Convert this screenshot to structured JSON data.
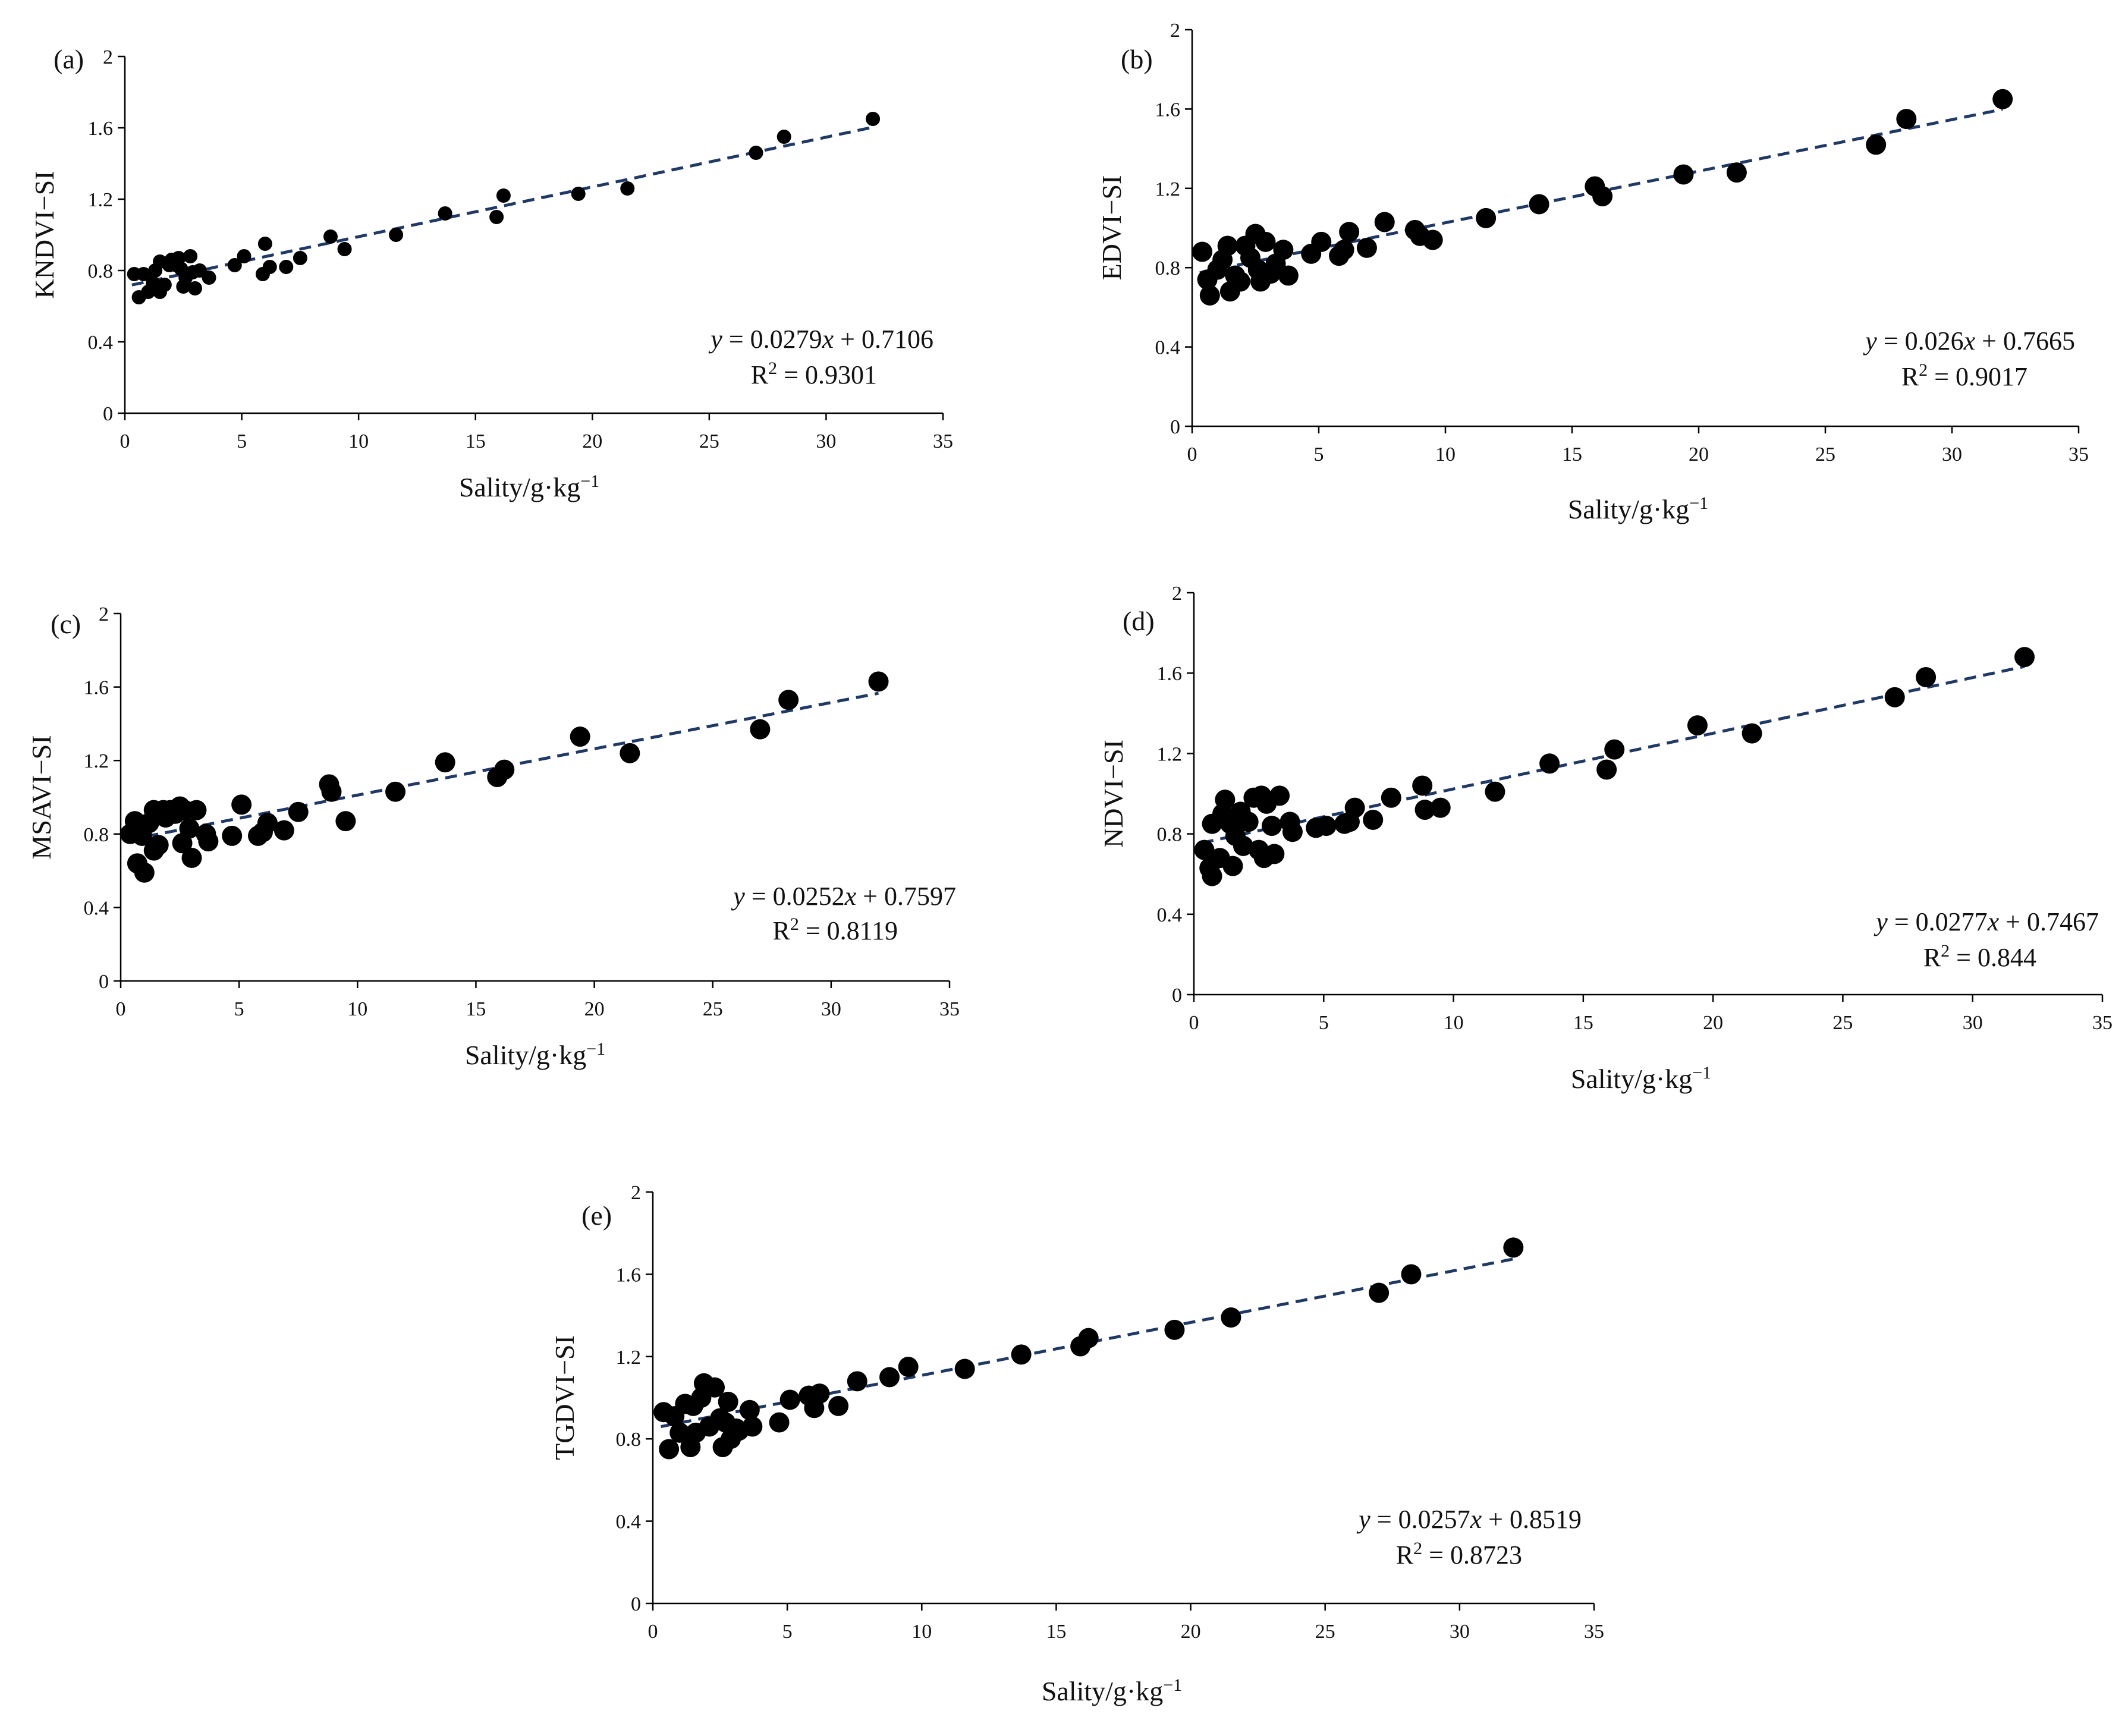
{
  "figure": {
    "xaxis_label_base": "Sality/g·kg",
    "xaxis_label_sup": "−1"
  },
  "chart_data": [
    {
      "type": "scatter",
      "panel": "(a)",
      "ylabel": "KNDVI−SI",
      "xlim": [
        0,
        35
      ],
      "ylim": [
        0,
        2
      ],
      "xticks": [
        "0",
        "5",
        "10",
        "15",
        "20",
        "25",
        "30",
        "35"
      ],
      "yticks": [
        "0",
        "0.4",
        "0.8",
        "1.2",
        "1.6",
        "2"
      ],
      "equation": {
        "y": "y",
        "eq": " = 0.0279",
        "x": "x",
        "tail": " + 0.7106"
      },
      "r2": {
        "base": "R",
        "sup": "2",
        "val": " = 0.9301"
      },
      "fit": {
        "slope": 0.0279,
        "intercept": 0.7106
      },
      "marker": "small",
      "points": [
        [
          0.4,
          0.78
        ],
        [
          0.6,
          0.65
        ],
        [
          0.8,
          0.78
        ],
        [
          1.0,
          0.68
        ],
        [
          1.2,
          0.73
        ],
        [
          1.3,
          0.8
        ],
        [
          1.5,
          0.85
        ],
        [
          1.5,
          0.68
        ],
        [
          1.7,
          0.72
        ],
        [
          1.9,
          0.83
        ],
        [
          2.0,
          0.86
        ],
        [
          2.2,
          0.83
        ],
        [
          2.3,
          0.87
        ],
        [
          2.4,
          0.81
        ],
        [
          2.5,
          0.71
        ],
        [
          2.6,
          0.76
        ],
        [
          2.8,
          0.88
        ],
        [
          2.9,
          0.79
        ],
        [
          3.0,
          0.7
        ],
        [
          3.2,
          0.8
        ],
        [
          3.6,
          0.76
        ],
        [
          4.7,
          0.83
        ],
        [
          5.1,
          0.88
        ],
        [
          5.9,
          0.78
        ],
        [
          6.0,
          0.95
        ],
        [
          6.2,
          0.82
        ],
        [
          6.9,
          0.82
        ],
        [
          7.5,
          0.87
        ],
        [
          8.8,
          0.99
        ],
        [
          9.4,
          0.92
        ],
        [
          11.6,
          1.0
        ],
        [
          13.7,
          1.12
        ],
        [
          15.9,
          1.1
        ],
        [
          16.2,
          1.22
        ],
        [
          19.4,
          1.23
        ],
        [
          21.5,
          1.26
        ],
        [
          27.0,
          1.46
        ],
        [
          28.2,
          1.55
        ],
        [
          32.0,
          1.65
        ]
      ]
    },
    {
      "type": "scatter",
      "panel": "(b)",
      "ylabel": "EDVI−SI",
      "xlim": [
        0,
        35
      ],
      "ylim": [
        0,
        2
      ],
      "xticks": [
        "0",
        "5",
        "10",
        "15",
        "20",
        "25",
        "30",
        "35"
      ],
      "yticks": [
        "0",
        "0.4",
        "0.8",
        "1.2",
        "1.6",
        "2"
      ],
      "equation": {
        "y": "y",
        "eq": " = 0.026",
        "x": "x",
        "tail": " + 0.7665"
      },
      "r2": {
        "base": "R",
        "sup": "2",
        "val": " = 0.9017"
      },
      "fit": {
        "slope": 0.026,
        "intercept": 0.7665
      },
      "marker": "large",
      "points": [
        [
          0.4,
          0.88
        ],
        [
          0.6,
          0.74
        ],
        [
          0.7,
          0.66
        ],
        [
          1.0,
          0.79
        ],
        [
          1.2,
          0.84
        ],
        [
          1.4,
          0.91
        ],
        [
          1.5,
          0.68
        ],
        [
          1.7,
          0.76
        ],
        [
          1.9,
          0.73
        ],
        [
          2.1,
          0.91
        ],
        [
          2.3,
          0.85
        ],
        [
          2.5,
          0.97
        ],
        [
          2.6,
          0.79
        ],
        [
          2.7,
          0.73
        ],
        [
          2.9,
          0.93
        ],
        [
          3.1,
          0.77
        ],
        [
          3.3,
          0.82
        ],
        [
          3.6,
          0.89
        ],
        [
          3.8,
          0.76
        ],
        [
          4.7,
          0.87
        ],
        [
          5.1,
          0.93
        ],
        [
          5.8,
          0.86
        ],
        [
          6.0,
          0.89
        ],
        [
          6.2,
          0.98
        ],
        [
          6.9,
          0.9
        ],
        [
          7.6,
          1.03
        ],
        [
          8.8,
          0.99
        ],
        [
          9.0,
          0.96
        ],
        [
          9.5,
          0.94
        ],
        [
          11.6,
          1.05
        ],
        [
          13.7,
          1.12
        ],
        [
          15.9,
          1.21
        ],
        [
          16.2,
          1.16
        ],
        [
          19.4,
          1.27
        ],
        [
          21.5,
          1.28
        ],
        [
          27.0,
          1.42
        ],
        [
          28.2,
          1.55
        ],
        [
          32.0,
          1.65
        ]
      ]
    },
    {
      "type": "scatter",
      "panel": "(c)",
      "ylabel": "MSAVI−SI",
      "xlim": [
        0,
        35
      ],
      "ylim": [
        0,
        2
      ],
      "xticks": [
        "0",
        "5",
        "10",
        "15",
        "20",
        "25",
        "30",
        "35"
      ],
      "yticks": [
        "0",
        "0.4",
        "0.8",
        "1.2",
        "1.6",
        "2"
      ],
      "equation": {
        "y": "y",
        "eq": " = 0.0252",
        "x": "x",
        "tail": " + 0.7597"
      },
      "r2": {
        "base": "R",
        "sup": "2",
        "val": " = 0.8119"
      },
      "fit": {
        "slope": 0.0252,
        "intercept": 0.7597
      },
      "marker": "large",
      "points": [
        [
          0.4,
          0.8
        ],
        [
          0.6,
          0.87
        ],
        [
          0.7,
          0.64
        ],
        [
          0.9,
          0.79
        ],
        [
          1.0,
          0.59
        ],
        [
          1.2,
          0.86
        ],
        [
          1.4,
          0.93
        ],
        [
          1.4,
          0.71
        ],
        [
          1.6,
          0.74
        ],
        [
          1.8,
          0.93
        ],
        [
          1.9,
          0.89
        ],
        [
          2.1,
          0.93
        ],
        [
          2.3,
          0.91
        ],
        [
          2.5,
          0.95
        ],
        [
          2.6,
          0.75
        ],
        [
          2.7,
          0.93
        ],
        [
          2.9,
          0.83
        ],
        [
          3.0,
          0.67
        ],
        [
          3.2,
          0.93
        ],
        [
          3.6,
          0.8
        ],
        [
          3.7,
          0.76
        ],
        [
          4.7,
          0.79
        ],
        [
          5.1,
          0.96
        ],
        [
          5.8,
          0.79
        ],
        [
          6.0,
          0.81
        ],
        [
          6.2,
          0.86
        ],
        [
          6.9,
          0.82
        ],
        [
          7.5,
          0.92
        ],
        [
          8.8,
          1.07
        ],
        [
          8.9,
          1.03
        ],
        [
          9.5,
          0.87
        ],
        [
          11.6,
          1.03
        ],
        [
          13.7,
          1.19
        ],
        [
          15.9,
          1.11
        ],
        [
          16.2,
          1.15
        ],
        [
          19.4,
          1.33
        ],
        [
          21.5,
          1.24
        ],
        [
          27.0,
          1.37
        ],
        [
          28.2,
          1.53
        ],
        [
          32.0,
          1.63
        ]
      ]
    },
    {
      "type": "scatter",
      "panel": "(d)",
      "ylabel": "NDVI−SI",
      "xlim": [
        0,
        35
      ],
      "ylim": [
        0,
        2
      ],
      "xticks": [
        "0",
        "5",
        "10",
        "15",
        "20",
        "25",
        "30",
        "35"
      ],
      "yticks": [
        "0",
        "0.4",
        "0.8",
        "1.2",
        "1.6",
        "2"
      ],
      "equation": {
        "y": "y",
        "eq": " = 0.0277",
        "x": "x",
        "tail": " + 0.7467"
      },
      "r2": {
        "base": "R",
        "sup": "2",
        "val": " = 0.844"
      },
      "fit": {
        "slope": 0.0277,
        "intercept": 0.7467
      },
      "marker": "large",
      "points": [
        [
          0.4,
          0.72
        ],
        [
          0.6,
          0.63
        ],
        [
          0.7,
          0.59
        ],
        [
          0.7,
          0.85
        ],
        [
          1.0,
          0.68
        ],
        [
          1.1,
          0.9
        ],
        [
          1.2,
          0.97
        ],
        [
          1.4,
          0.85
        ],
        [
          1.5,
          0.64
        ],
        [
          1.6,
          0.79
        ],
        [
          1.8,
          0.91
        ],
        [
          1.9,
          0.74
        ],
        [
          2.1,
          0.86
        ],
        [
          2.3,
          0.98
        ],
        [
          2.5,
          0.72
        ],
        [
          2.6,
          0.99
        ],
        [
          2.7,
          0.68
        ],
        [
          2.8,
          0.95
        ],
        [
          3.0,
          0.84
        ],
        [
          3.1,
          0.7
        ],
        [
          3.3,
          0.99
        ],
        [
          3.7,
          0.86
        ],
        [
          3.8,
          0.81
        ],
        [
          4.7,
          0.83
        ],
        [
          5.1,
          0.84
        ],
        [
          5.8,
          0.85
        ],
        [
          6.0,
          0.86
        ],
        [
          6.2,
          0.93
        ],
        [
          6.9,
          0.87
        ],
        [
          7.6,
          0.98
        ],
        [
          8.8,
          1.04
        ],
        [
          8.9,
          0.92
        ],
        [
          9.5,
          0.93
        ],
        [
          11.6,
          1.01
        ],
        [
          13.7,
          1.15
        ],
        [
          15.9,
          1.12
        ],
        [
          16.2,
          1.22
        ],
        [
          19.4,
          1.34
        ],
        [
          21.5,
          1.3
        ],
        [
          27.0,
          1.48
        ],
        [
          28.2,
          1.58
        ],
        [
          32.0,
          1.68
        ]
      ]
    },
    {
      "type": "scatter",
      "panel": "(e)",
      "ylabel": "TGDVI−SI",
      "xlim": [
        0,
        35
      ],
      "ylim": [
        0,
        2
      ],
      "xticks": [
        "0",
        "5",
        "10",
        "15",
        "20",
        "25",
        "30",
        "35"
      ],
      "yticks": [
        "0",
        "0.4",
        "0.8",
        "1.2",
        "1.6",
        "2"
      ],
      "equation": {
        "y": "y",
        "eq": " = 0.0257",
        "x": "x",
        "tail": " + 0.8519"
      },
      "r2": {
        "base": "R",
        "sup": "2",
        "val": " = 0.8723"
      },
      "fit": {
        "slope": 0.0257,
        "intercept": 0.8519
      },
      "marker": "large",
      "points": [
        [
          0.4,
          0.93
        ],
        [
          0.6,
          0.75
        ],
        [
          0.8,
          0.91
        ],
        [
          1.0,
          0.83
        ],
        [
          1.2,
          0.97
        ],
        [
          1.4,
          0.76
        ],
        [
          1.5,
          0.96
        ],
        [
          1.6,
          0.83
        ],
        [
          1.8,
          1.0
        ],
        [
          1.9,
          1.07
        ],
        [
          2.1,
          0.86
        ],
        [
          2.3,
          1.05
        ],
        [
          2.5,
          0.9
        ],
        [
          2.6,
          0.76
        ],
        [
          2.7,
          0.88
        ],
        [
          2.8,
          0.98
        ],
        [
          2.9,
          0.8
        ],
        [
          3.1,
          0.85
        ],
        [
          3.2,
          0.84
        ],
        [
          3.6,
          0.94
        ],
        [
          3.7,
          0.86
        ],
        [
          4.7,
          0.88
        ],
        [
          5.1,
          0.99
        ],
        [
          5.8,
          1.01
        ],
        [
          6.0,
          0.95
        ],
        [
          6.2,
          1.02
        ],
        [
          6.9,
          0.96
        ],
        [
          7.6,
          1.08
        ],
        [
          8.8,
          1.1
        ],
        [
          9.5,
          1.15
        ],
        [
          11.6,
          1.14
        ],
        [
          13.7,
          1.21
        ],
        [
          15.9,
          1.25
        ],
        [
          16.2,
          1.29
        ],
        [
          19.4,
          1.33
        ],
        [
          21.5,
          1.39
        ],
        [
          27.0,
          1.51
        ],
        [
          28.2,
          1.6
        ],
        [
          32.0,
          1.73
        ]
      ]
    }
  ]
}
